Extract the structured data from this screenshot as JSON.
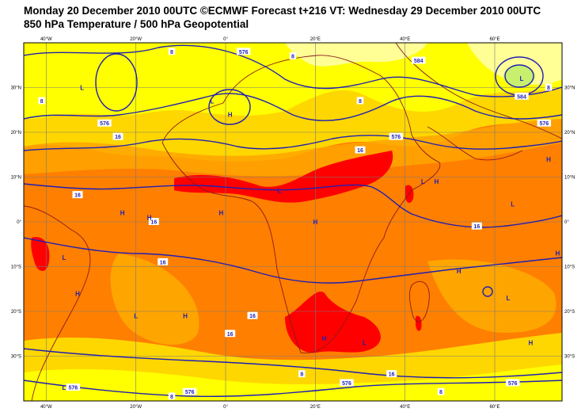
{
  "header": {
    "title_line1": "Monday 20 December 2010 00UTC ©ECMWF Forecast t+216 VT: Wednesday 29 December 2010 00UTC",
    "title_line2": "850 hPa Temperature / 500 hPa Geopotential"
  },
  "map": {
    "lon_labels": [
      "40°W",
      "20°W",
      "0°",
      "20°E",
      "40°E",
      "60°E"
    ],
    "lon_values": [
      -40,
      -20,
      0,
      20,
      40,
      60
    ],
    "lat_labels": [
      "30°N",
      "20°N",
      "10°N",
      "0°",
      "10°S",
      "20°S",
      "30°S"
    ],
    "lat_values": [
      30,
      20,
      10,
      0,
      -10,
      -20,
      -30
    ],
    "extent": {
      "lon_min": -45,
      "lon_max": 75,
      "lat_min": -40,
      "lat_max": 40
    },
    "colors": {
      "cold": "#c8f06e",
      "light_yellow": "#ffff96",
      "yellow": "#ffff00",
      "gold": "#ffd700",
      "orange_light": "#ffa500",
      "orange": "#ff7f00",
      "red": "#ff0000",
      "contour": "#1f1fb4",
      "coast": "#8b1a1a",
      "grid": "#7a7a7a"
    },
    "pressure_labels": [
      {
        "text": "L",
        "lon": -32,
        "lat": 30
      },
      {
        "text": "L",
        "lon": -3,
        "lat": 27
      },
      {
        "text": "H",
        "lon": 1,
        "lat": 24
      },
      {
        "text": "L",
        "lon": 66,
        "lat": 32
      },
      {
        "text": "L",
        "lon": 12,
        "lat": 7
      },
      {
        "text": "L",
        "lon": 44,
        "lat": 9
      },
      {
        "text": "H",
        "lon": 47,
        "lat": 9
      },
      {
        "text": "H",
        "lon": 72,
        "lat": 14
      },
      {
        "text": "H",
        "lon": -23,
        "lat": 2
      },
      {
        "text": "H",
        "lon": -17,
        "lat": 1
      },
      {
        "text": "H",
        "lon": -1,
        "lat": 2
      },
      {
        "text": "H",
        "lon": 20,
        "lat": 0
      },
      {
        "text": "L",
        "lon": 64,
        "lat": 4
      },
      {
        "text": "L",
        "lon": -36,
        "lat": -8
      },
      {
        "text": "H",
        "lon": -33,
        "lat": -16
      },
      {
        "text": "L",
        "lon": -20,
        "lat": -21
      },
      {
        "text": "H",
        "lon": -9,
        "lat": -21
      },
      {
        "text": "H",
        "lon": 52,
        "lat": -11
      },
      {
        "text": "H",
        "lon": 74,
        "lat": -7
      },
      {
        "text": "L",
        "lon": 63,
        "lat": -17
      },
      {
        "text": "H",
        "lon": 22,
        "lat": -26
      },
      {
        "text": "L",
        "lon": 31,
        "lat": -27
      },
      {
        "text": "H",
        "lon": 68,
        "lat": -27
      },
      {
        "text": "L",
        "lon": -36,
        "lat": -37
      }
    ],
    "contour_labels": [
      {
        "text": "8",
        "lon": -12,
        "lat": 38
      },
      {
        "text": "576",
        "lon": 4,
        "lat": 38
      },
      {
        "text": "8",
        "lon": 15,
        "lat": 37
      },
      {
        "text": "584",
        "lon": 43,
        "lat": 36
      },
      {
        "text": "8",
        "lon": -41,
        "lat": 27
      },
      {
        "text": "8",
        "lon": 30,
        "lat": 27
      },
      {
        "text": "8",
        "lon": 72,
        "lat": 30
      },
      {
        "text": "584",
        "lon": 66,
        "lat": 28
      },
      {
        "text": "576",
        "lon": -27,
        "lat": 22
      },
      {
        "text": "16",
        "lon": -24,
        "lat": 19
      },
      {
        "text": "576",
        "lon": 38,
        "lat": 19
      },
      {
        "text": "16",
        "lon": 30,
        "lat": 16
      },
      {
        "text": "576",
        "lon": 71,
        "lat": 22
      },
      {
        "text": "16",
        "lon": -33,
        "lat": 6
      },
      {
        "text": "16",
        "lon": -16,
        "lat": 0
      },
      {
        "text": "16",
        "lon": 56,
        "lat": -1
      },
      {
        "text": "16",
        "lon": -14,
        "lat": -9
      },
      {
        "text": "16",
        "lon": 6,
        "lat": -21
      },
      {
        "text": "16",
        "lon": 1,
        "lat": -25
      },
      {
        "text": "8",
        "lon": 17,
        "lat": -34
      },
      {
        "text": "576",
        "lon": -34,
        "lat": -37
      },
      {
        "text": "8",
        "lon": -12,
        "lat": -39
      },
      {
        "text": "576",
        "lon": -8,
        "lat": -38
      },
      {
        "text": "576",
        "lon": 27,
        "lat": -36
      },
      {
        "text": "16",
        "lon": 37,
        "lat": -34
      },
      {
        "text": "8",
        "lon": 48,
        "lat": -38
      },
      {
        "text": "576",
        "lon": 64,
        "lat": -36
      }
    ]
  }
}
